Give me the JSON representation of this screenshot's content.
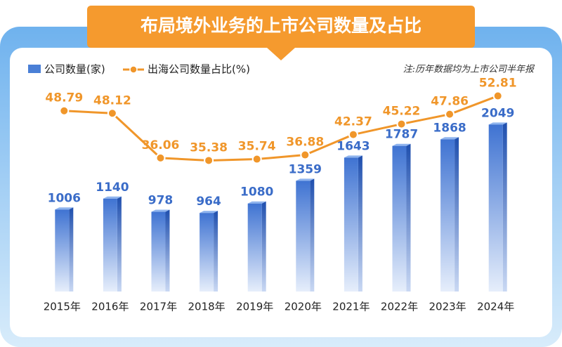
{
  "chart_data": {
    "type": "bar-line",
    "title": "布局境外业务的上市公司数量及占比",
    "note": "注:历年数据均为上市公司半年报",
    "categories": [
      "2015年",
      "2016年",
      "2017年",
      "2018年",
      "2019年",
      "2020年",
      "2021年",
      "2022年",
      "2023年",
      "2024年"
    ],
    "series": [
      {
        "name": "公司数量(家)",
        "type": "bar",
        "color": "#4a7fd6",
        "values": [
          1006,
          1140,
          978,
          964,
          1080,
          1359,
          1643,
          1787,
          1868,
          2049
        ]
      },
      {
        "name": "出海公司数量占比(%)",
        "type": "line",
        "axis": "y2",
        "color": "#f0962a",
        "values": [
          48.79,
          48.12,
          36.06,
          35.38,
          35.74,
          36.88,
          42.37,
          45.22,
          47.86,
          52.81
        ]
      }
    ],
    "ylim": [
      0,
      2500
    ],
    "y2lim": [
      0,
      55
    ]
  }
}
